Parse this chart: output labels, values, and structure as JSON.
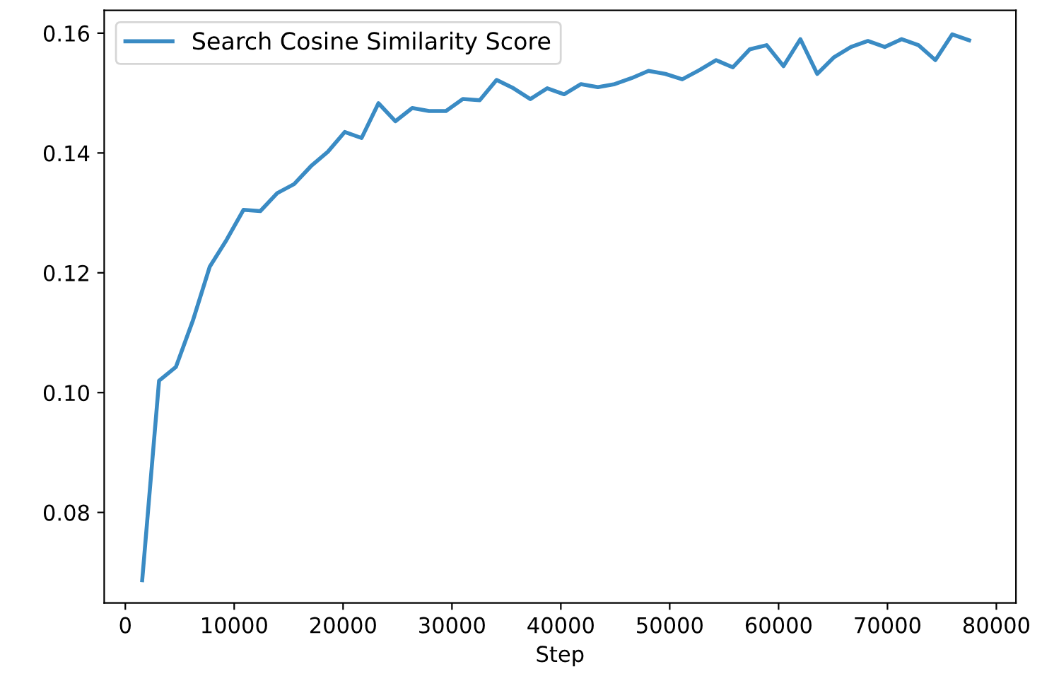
{
  "chart_data": {
    "type": "line",
    "xlabel": "Step",
    "x": [
      1550,
      3100,
      4650,
      6200,
      7750,
      9300,
      10850,
      12400,
      13950,
      15500,
      17050,
      18600,
      20150,
      21700,
      23250,
      24800,
      26350,
      27900,
      29450,
      31000,
      32550,
      34100,
      35650,
      37200,
      38750,
      40300,
      41850,
      43400,
      44950,
      46500,
      48050,
      49600,
      51150,
      52700,
      54250,
      55800,
      57350,
      58900,
      60450,
      62000,
      63550,
      65100,
      66650,
      68200,
      69750,
      71300,
      72850,
      74400,
      75950,
      77500
    ],
    "series": [
      {
        "name": "Search Cosine Similarity Score",
        "color": "#3a8bc4",
        "values": [
          0.0687,
          0.102,
          0.1043,
          0.112,
          0.121,
          0.1255,
          0.1305,
          0.1303,
          0.1333,
          0.1348,
          0.1378,
          0.1402,
          0.1435,
          0.1425,
          0.1483,
          0.1453,
          0.1475,
          0.147,
          0.147,
          0.149,
          0.1488,
          0.1522,
          0.1508,
          0.149,
          0.1508,
          0.1498,
          0.1515,
          0.151,
          0.1515,
          0.1525,
          0.1537,
          0.1532,
          0.1523,
          0.1538,
          0.1555,
          0.1543,
          0.1573,
          0.158,
          0.1545,
          0.159,
          0.1532,
          0.156,
          0.1577,
          0.1587,
          0.1577,
          0.159,
          0.158,
          0.1555,
          0.1598,
          0.1588
        ]
      }
    ],
    "xlim": [
      -1940,
      81800
    ],
    "ylim": [
      0.0649,
      0.1638
    ],
    "xticks": [
      0,
      10000,
      20000,
      30000,
      40000,
      50000,
      60000,
      70000,
      80000
    ],
    "yticks": [
      {
        "value": 0.08,
        "label": "0.08"
      },
      {
        "value": 0.1,
        "label": "0.10"
      },
      {
        "value": 0.12,
        "label": "0.12"
      },
      {
        "value": 0.14,
        "label": "0.14"
      },
      {
        "value": 0.16,
        "label": "0.16"
      }
    ],
    "legend": "top left",
    "grid": false,
    "line_style": "solid"
  }
}
